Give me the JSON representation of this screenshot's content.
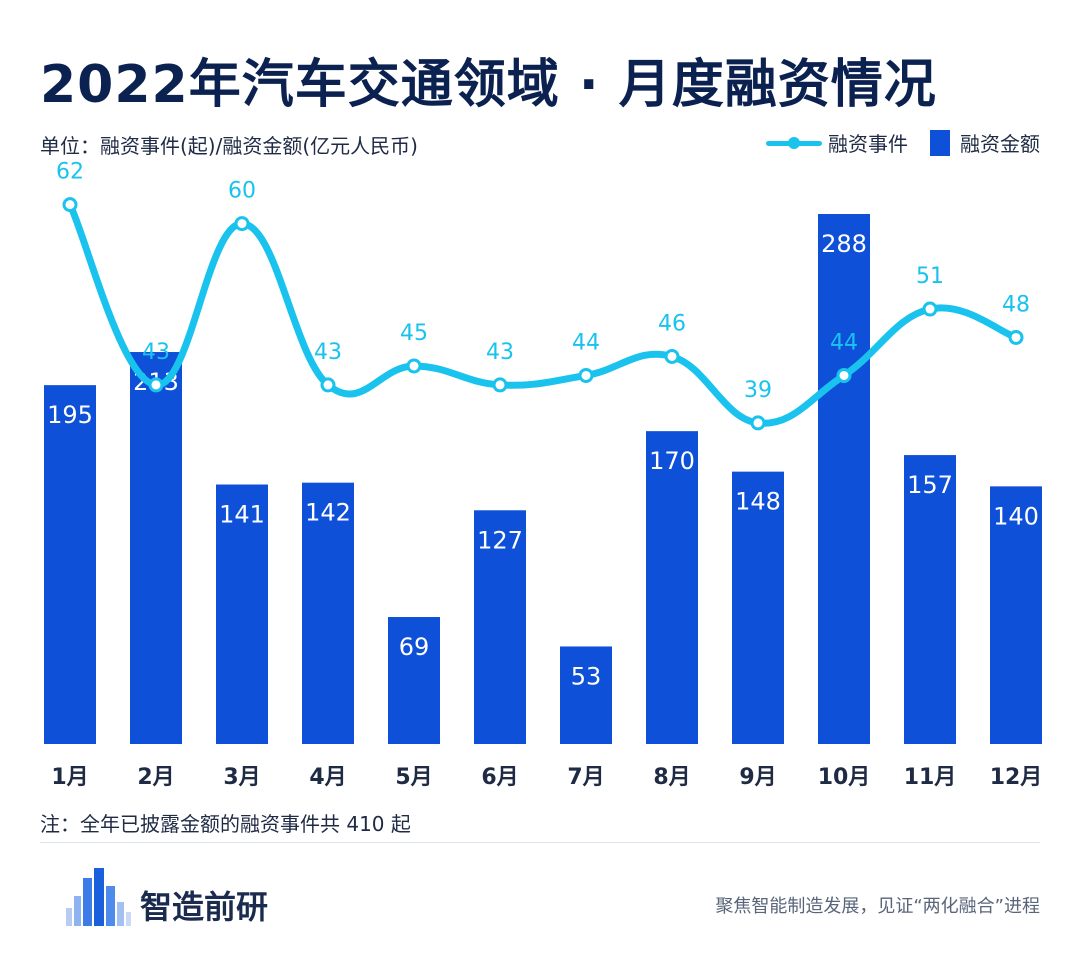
{
  "title": "2022年汽车交通领域 · 月度融资情况",
  "unit_label": "单位：融资事件(起)/融资金额(亿元人民币)",
  "legend": {
    "line": "融资事件",
    "bar": "融资金额"
  },
  "note": "注：全年已披露金额的融资事件共 410 起",
  "brand": "智造前研",
  "slogan": "聚焦智能制造发展，见证“两化融合”进程",
  "colors": {
    "bar": "#0e50d8",
    "line": "#19c3ee",
    "title": "#0b2150"
  },
  "chart_data": {
    "type": "bar",
    "categories": [
      "1月",
      "2月",
      "3月",
      "4月",
      "5月",
      "6月",
      "7月",
      "8月",
      "9月",
      "10月",
      "11月",
      "12月"
    ],
    "series": [
      {
        "name": "融资金额",
        "type": "bar",
        "values": [
          195,
          213,
          141,
          142,
          69,
          127,
          53,
          170,
          148,
          288,
          157,
          140
        ]
      },
      {
        "name": "融资事件",
        "type": "line",
        "values": [
          62,
          43,
          60,
          43,
          45,
          43,
          44,
          46,
          39,
          44,
          51,
          48
        ]
      }
    ],
    "grid": false,
    "legend_position": "top-right"
  }
}
